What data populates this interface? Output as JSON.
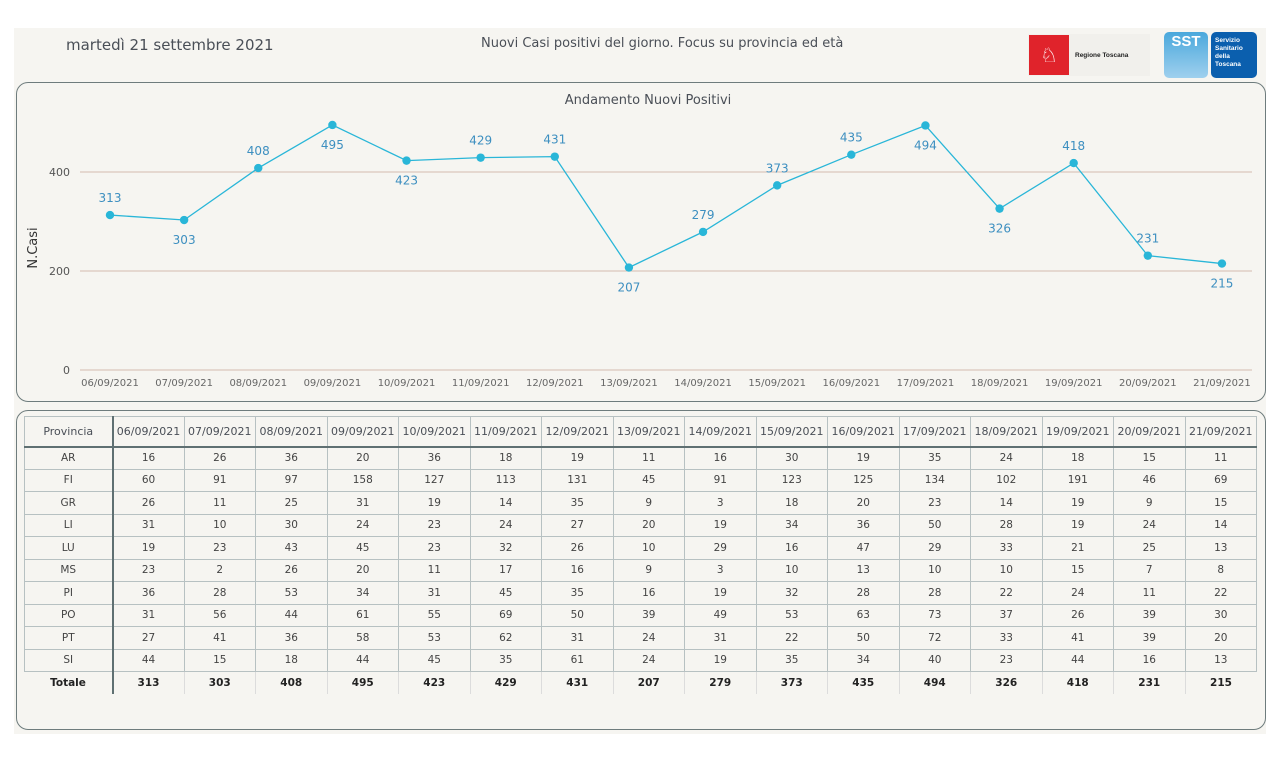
{
  "header": {
    "date": "martedì 21 settembre 2021",
    "title": "Nuovi Casi positivi del giorno. Focus su provincia ed età",
    "logo_regione": "Regione Toscana",
    "logo_sst_short": "SST",
    "logo_sst_long": [
      "Servizio",
      "Sanitario",
      "della",
      "Toscana"
    ]
  },
  "colors": {
    "line": "#29b6d8",
    "label": "#3d8fc0",
    "grid": "#c9a898",
    "panel_border": "#6e7c7d",
    "background": "#f6f5f1"
  },
  "chart_data": {
    "type": "line",
    "title": "Andamento Nuovi Positivi",
    "xlabel": "",
    "ylabel": "N.Casi",
    "ylim": [
      0,
      520
    ],
    "yticks": [
      0,
      200,
      400
    ],
    "grid": true,
    "x": [
      "06/09/2021",
      "07/09/2021",
      "08/09/2021",
      "09/09/2021",
      "10/09/2021",
      "11/09/2021",
      "12/09/2021",
      "13/09/2021",
      "14/09/2021",
      "15/09/2021",
      "16/09/2021",
      "17/09/2021",
      "18/09/2021",
      "19/09/2021",
      "20/09/2021",
      "21/09/2021"
    ],
    "series": [
      {
        "name": "Nuovi Positivi",
        "values": [
          313,
          303,
          408,
          495,
          423,
          429,
          431,
          207,
          279,
          373,
          435,
          494,
          326,
          418,
          231,
          215
        ],
        "label_side": [
          "above",
          "below",
          "above",
          "below",
          "below",
          "above",
          "above",
          "below",
          "above",
          "above",
          "above",
          "below",
          "below",
          "above",
          "above",
          "below"
        ]
      }
    ]
  },
  "table": {
    "header_first": "Provincia",
    "dates": [
      "06/09/2021",
      "07/09/2021",
      "08/09/2021",
      "09/09/2021",
      "10/09/2021",
      "11/09/2021",
      "12/09/2021",
      "13/09/2021",
      "14/09/2021",
      "15/09/2021",
      "16/09/2021",
      "17/09/2021",
      "18/09/2021",
      "19/09/2021",
      "20/09/2021",
      "21/09/2021"
    ],
    "rows": [
      {
        "prov": "AR",
        "values": [
          16,
          26,
          36,
          20,
          36,
          18,
          19,
          11,
          16,
          30,
          19,
          35,
          24,
          18,
          15,
          11
        ]
      },
      {
        "prov": "FI",
        "values": [
          60,
          91,
          97,
          158,
          127,
          113,
          131,
          45,
          91,
          123,
          125,
          134,
          102,
          191,
          46,
          69
        ]
      },
      {
        "prov": "GR",
        "values": [
          26,
          11,
          25,
          31,
          19,
          14,
          35,
          9,
          3,
          18,
          20,
          23,
          14,
          19,
          9,
          15
        ]
      },
      {
        "prov": "LI",
        "values": [
          31,
          10,
          30,
          24,
          23,
          24,
          27,
          20,
          19,
          34,
          36,
          50,
          28,
          19,
          24,
          14
        ]
      },
      {
        "prov": "LU",
        "values": [
          19,
          23,
          43,
          45,
          23,
          32,
          26,
          10,
          29,
          16,
          47,
          29,
          33,
          21,
          25,
          13
        ]
      },
      {
        "prov": "MS",
        "values": [
          23,
          2,
          26,
          20,
          11,
          17,
          16,
          9,
          3,
          10,
          13,
          10,
          10,
          15,
          7,
          8
        ]
      },
      {
        "prov": "PI",
        "values": [
          36,
          28,
          53,
          34,
          31,
          45,
          35,
          16,
          19,
          32,
          28,
          28,
          22,
          24,
          11,
          22
        ]
      },
      {
        "prov": "PO",
        "values": [
          31,
          56,
          44,
          61,
          55,
          69,
          50,
          39,
          49,
          53,
          63,
          73,
          37,
          26,
          39,
          30
        ]
      },
      {
        "prov": "PT",
        "values": [
          27,
          41,
          36,
          58,
          53,
          62,
          31,
          24,
          31,
          22,
          50,
          72,
          33,
          41,
          39,
          20
        ]
      },
      {
        "prov": "SI",
        "values": [
          44,
          15,
          18,
          44,
          45,
          35,
          61,
          24,
          19,
          35,
          34,
          40,
          23,
          44,
          16,
          13
        ]
      }
    ],
    "total": {
      "prov": "Totale",
      "values": [
        313,
        303,
        408,
        495,
        423,
        429,
        431,
        207,
        279,
        373,
        435,
        494,
        326,
        418,
        231,
        215
      ]
    }
  }
}
